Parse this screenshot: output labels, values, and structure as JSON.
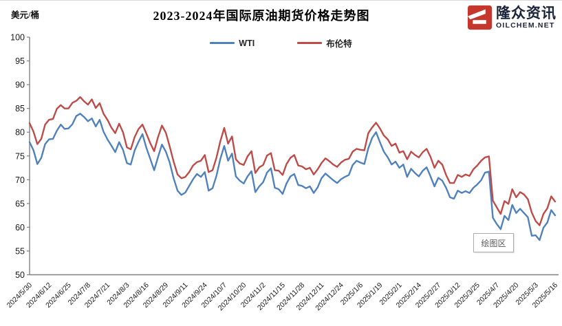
{
  "header": {
    "title": "2023-2024年国际原油期货价格走势图",
    "unit_label": "美元/桶",
    "logo": {
      "brand": "隆众资讯",
      "domain": "OILCHEM.NET",
      "accent_color": "#c5362c",
      "text_color": "#1b2438"
    }
  },
  "legend": [
    {
      "label": "WTI",
      "color": "#4f81bd"
    },
    {
      "label": "布伦特",
      "color": "#be4b48"
    }
  ],
  "tooltip": {
    "text": "绘图区"
  },
  "chart_data": {
    "type": "line",
    "title": "2023-2024年国际原油期货价格走势图",
    "ylabel": "美元/桶",
    "ylim": [
      50,
      100
    ],
    "ytick_step": 5,
    "grid": false,
    "legend_position": "top-center",
    "axis_color": "#808080",
    "x_labels": [
      "2024/5/30",
      "2024/6/12",
      "2024/6/25",
      "2024/7/8",
      "2024/7/21",
      "2024/8/3",
      "2024/8/16",
      "2024/8/29",
      "2024/9/11",
      "2024/9/24",
      "2024/10/7",
      "2024/10/20",
      "2024/11/2",
      "2024/11/15",
      "2024/11/28",
      "2024/12/11",
      "2024/12/24",
      "2025/1/6",
      "2025/1/19",
      "2025/2/1",
      "2025/2/14",
      "2025/2/27",
      "2025/3/12",
      "2025/3/25",
      "2025/4/7",
      "2025/4/20",
      "2025/5/3",
      "2025/5/16"
    ],
    "points_per_label": 5,
    "series": [
      {
        "name": "WTI",
        "key": "wti",
        "color": "#4f81bd",
        "values": [
          77.9,
          76.2,
          73.3,
          74.6,
          77.5,
          78.5,
          78.6,
          80.3,
          81.6,
          80.7,
          80.8,
          81.7,
          83.4,
          83.9,
          83.2,
          82.3,
          82.9,
          81.2,
          82.6,
          80.1,
          78.5,
          77.2,
          75.8,
          77.9,
          76.3,
          73.5,
          73.2,
          76.2,
          78.0,
          79.6,
          76.7,
          74.4,
          72.0,
          74.8,
          77.4,
          75.9,
          73.6,
          70.3,
          67.7,
          66.8,
          67.3,
          68.7,
          70.1,
          71.2,
          70.6,
          71.6,
          67.7,
          68.2,
          70.8,
          74.4,
          77.1,
          74.0,
          75.5,
          70.7,
          69.8,
          69.2,
          70.7,
          71.8,
          67.4,
          68.6,
          69.5,
          71.5,
          72.4,
          68.3,
          68.0,
          67.0,
          69.2,
          70.7,
          71.2,
          68.9,
          68.7,
          68.2,
          68.6,
          67.2,
          68.4,
          70.3,
          71.3,
          70.6,
          69.9,
          69.3,
          70.1,
          70.6,
          71.0,
          73.1,
          74.0,
          73.6,
          73.3,
          76.6,
          78.8,
          80.0,
          77.9,
          75.9,
          74.7,
          73.2,
          73.8,
          72.5,
          73.2,
          70.6,
          72.3,
          71.4,
          70.7,
          71.9,
          72.6,
          70.7,
          68.6,
          70.4,
          69.8,
          68.3,
          66.3,
          66.0,
          67.7,
          67.2,
          67.6,
          67.2,
          68.3,
          69.0,
          69.9,
          71.5,
          71.7,
          62.0,
          60.7,
          59.6,
          62.4,
          61.5,
          64.7,
          63.0,
          63.9,
          63.0,
          62.1,
          58.2,
          58.3,
          57.3,
          59.9,
          61.0,
          63.6,
          62.5
        ]
      },
      {
        "name": "布伦特",
        "key": "brent",
        "color": "#be4b48",
        "values": [
          81.9,
          80.1,
          77.5,
          78.6,
          81.6,
          82.6,
          82.8,
          84.9,
          85.7,
          85.0,
          85.0,
          86.2,
          86.6,
          87.4,
          86.5,
          85.8,
          86.9,
          85.1,
          86.1,
          83.9,
          82.6,
          81.0,
          79.8,
          81.8,
          80.0,
          76.8,
          76.4,
          79.0,
          80.7,
          81.6,
          79.7,
          77.7,
          76.0,
          79.0,
          81.4,
          79.9,
          77.0,
          73.8,
          71.1,
          70.3,
          70.6,
          71.6,
          73.0,
          73.7,
          74.0,
          75.2,
          71.6,
          72.0,
          74.6,
          78.1,
          80.9,
          77.6,
          79.1,
          74.3,
          73.4,
          73.1,
          74.9,
          76.0,
          71.4,
          72.6,
          73.1,
          75.1,
          75.6,
          72.0,
          71.9,
          71.0,
          73.3,
          74.6,
          75.2,
          73.0,
          72.8,
          72.2,
          72.5,
          71.1,
          72.2,
          73.5,
          74.5,
          73.9,
          73.2,
          72.7,
          73.6,
          74.2,
          74.4,
          75.9,
          76.5,
          76.3,
          76.2,
          79.8,
          81.0,
          82.0,
          80.8,
          79.3,
          78.5,
          77.1,
          77.6,
          75.7,
          76.0,
          74.3,
          75.9,
          75.2,
          74.7,
          75.8,
          76.5,
          74.8,
          72.5,
          74.0,
          73.2,
          71.0,
          69.3,
          69.3,
          71.0,
          70.6,
          71.1,
          70.8,
          72.2,
          73.0,
          74.0,
          74.7,
          74.9,
          65.6,
          64.2,
          62.8,
          65.5,
          64.9,
          68.0,
          66.3,
          67.4,
          66.9,
          65.9,
          63.1,
          61.3,
          60.4,
          62.8,
          64.0,
          66.5,
          65.4
        ]
      }
    ]
  }
}
